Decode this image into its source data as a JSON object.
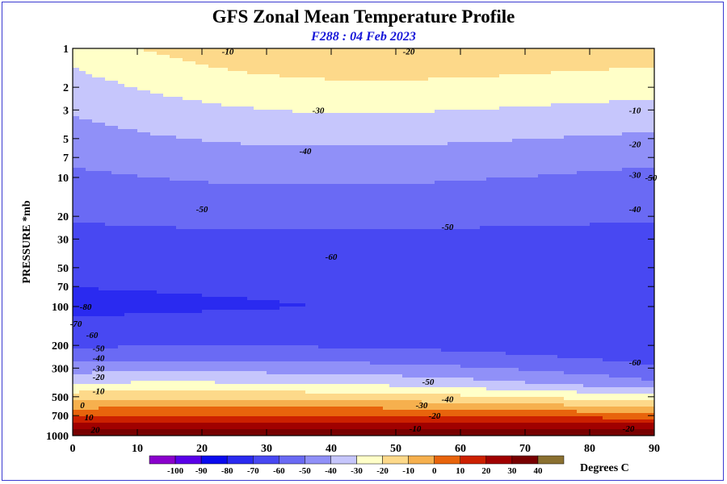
{
  "chart_data": {
    "type": "contour",
    "title": "GFS Zonal Mean Temperature Profile",
    "subtitle": "F288 : 04 Feb 2023",
    "ylabel": "PRESSURE *mb",
    "xlim": [
      0,
      90
    ],
    "ylim": [
      1000,
      1
    ],
    "y_scale": "log",
    "x_ticks": [
      "0",
      "10",
      "20",
      "30",
      "40",
      "50",
      "60",
      "70",
      "80",
      "90"
    ],
    "y_ticks": [
      "1",
      "2",
      "3",
      "5",
      "7",
      "10",
      "20",
      "30",
      "50",
      "70",
      "100",
      "200",
      "300",
      "500",
      "700",
      "1000"
    ],
    "colorbar": {
      "unit": "Degrees C",
      "levels": [
        "-100",
        "-90",
        "-80",
        "-70",
        "-60",
        "-50",
        "-40",
        "-30",
        "-20",
        "-10",
        "0",
        "10",
        "20",
        "30",
        "40"
      ],
      "colors": [
        "#8a00cc",
        "#5a00e8",
        "#0a0aee",
        "#2a2af0",
        "#4848f2",
        "#6a6af4",
        "#9090f8",
        "#c6c6fc",
        "#ffffc8",
        "#fdd98a",
        "#f6b04e",
        "#e8640c",
        "#cc2000",
        "#a00000",
        "#780000",
        "#8a7030"
      ]
    },
    "contour_labels": [
      {
        "lat": 24,
        "p": 1.05,
        "text": "-10"
      },
      {
        "lat": 52,
        "p": 1.05,
        "text": "-20"
      },
      {
        "lat": 38,
        "p": 3.0,
        "text": "-30"
      },
      {
        "lat": 36,
        "p": 6.2,
        "text": "-40"
      },
      {
        "lat": 20,
        "p": 17.5,
        "text": "-50"
      },
      {
        "lat": 40,
        "p": 41,
        "text": "-60"
      },
      {
        "lat": 2,
        "p": 100,
        "text": "-80"
      },
      {
        "lat": 0.5,
        "p": 135,
        "text": "-70"
      },
      {
        "lat": 3,
        "p": 165,
        "text": "-60"
      },
      {
        "lat": 4,
        "p": 210,
        "text": "-50"
      },
      {
        "lat": 4,
        "p": 250,
        "text": "-40"
      },
      {
        "lat": 4,
        "p": 300,
        "text": "-30"
      },
      {
        "lat": 4,
        "p": 350,
        "text": "-20"
      },
      {
        "lat": 4,
        "p": 450,
        "text": "-10"
      },
      {
        "lat": 1.5,
        "p": 580,
        "text": "0"
      },
      {
        "lat": 2.5,
        "p": 720,
        "text": "10"
      },
      {
        "lat": 3.5,
        "p": 900,
        "text": "20"
      },
      {
        "lat": 58,
        "p": 24,
        "text": "-50"
      },
      {
        "lat": 55,
        "p": 380,
        "text": "-50"
      },
      {
        "lat": 58,
        "p": 520,
        "text": "-40"
      },
      {
        "lat": 54,
        "p": 580,
        "text": "-30"
      },
      {
        "lat": 56,
        "p": 700,
        "text": "-20"
      },
      {
        "lat": 53,
        "p": 880,
        "text": "-10"
      },
      {
        "lat": 87,
        "p": 3.0,
        "text": "-10"
      },
      {
        "lat": 87,
        "p": 5.5,
        "text": "-20"
      },
      {
        "lat": 87,
        "p": 9.5,
        "text": "-30"
      },
      {
        "lat": 87,
        "p": 17.5,
        "text": "-40"
      },
      {
        "lat": 89.5,
        "p": 10,
        "text": "-50"
      },
      {
        "lat": 87,
        "p": 270,
        "text": "-60"
      },
      {
        "lat": 86,
        "p": 880,
        "text": "-20"
      }
    ]
  }
}
